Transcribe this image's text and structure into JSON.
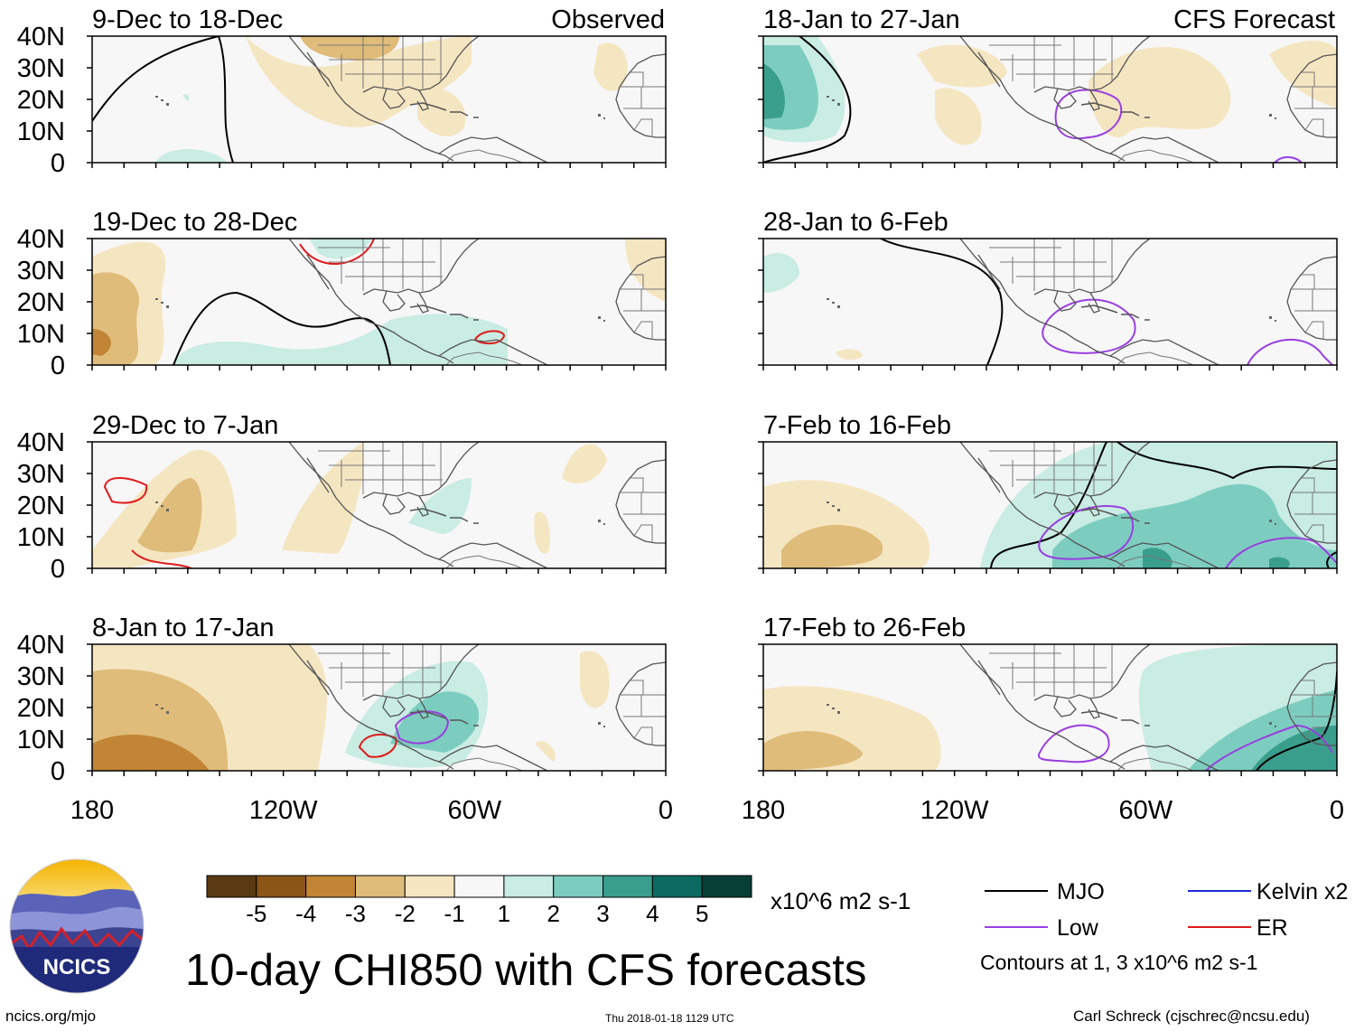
{
  "title": "10-day CHI850 with CFS forecasts",
  "lat_labels": [
    "40N",
    "30N",
    "20N",
    "10N",
    "0"
  ],
  "lon_labels": [
    "180",
    "120W",
    "60W",
    "0"
  ],
  "observed_label": "Observed",
  "forecast_label": "CFS Forecast",
  "panels": [
    {
      "id": "p1",
      "period": "9-Dec to 18-Dec",
      "source": "Observed"
    },
    {
      "id": "p2",
      "period": "19-Dec to 28-Dec",
      "source": "Observed"
    },
    {
      "id": "p3",
      "period": "29-Dec to 7-Jan",
      "source": "Observed"
    },
    {
      "id": "p4",
      "period": "8-Jan to 17-Jan",
      "source": "Observed"
    },
    {
      "id": "p5",
      "period": "18-Jan to 27-Jan",
      "source": "CFS Forecast"
    },
    {
      "id": "p6",
      "period": "28-Jan to 6-Feb",
      "source": "CFS Forecast"
    },
    {
      "id": "p7",
      "period": "7-Feb to 16-Feb",
      "source": "CFS Forecast"
    },
    {
      "id": "p8",
      "period": "17-Feb to 26-Feb",
      "source": "CFS Forecast"
    }
  ],
  "colorbar": {
    "labels": [
      "-5",
      "-4",
      "-3",
      "-2",
      "-1",
      "1",
      "2",
      "3",
      "4",
      "5"
    ],
    "colors": [
      "#5a3a12",
      "#8a5515",
      "#c28535",
      "#dfbc7a",
      "#f5e6c2",
      "#f7f7f7",
      "#c9ece3",
      "#7ccdbf",
      "#3a9e8c",
      "#0b6b62",
      "#073f37"
    ],
    "units": "x10^6 m2 s-1"
  },
  "legend": {
    "items": [
      {
        "label": "MJO",
        "color": "#000000"
      },
      {
        "label": "Kelvin x2",
        "color": "#1a2bd6"
      },
      {
        "label": "Low",
        "color": "#9a3ee0"
      },
      {
        "label": "ER",
        "color": "#e01a1a"
      }
    ],
    "note": "Contours at 1, 3 x10^6 m2 s-1"
  },
  "logo_text": "NCICS",
  "footer": {
    "url": "ncics.org/mjo",
    "timestamp": "Thu 2018-01-18 1129 UTC",
    "credit": "Carl Schreck (cjschrec@ncsu.edu)"
  }
}
